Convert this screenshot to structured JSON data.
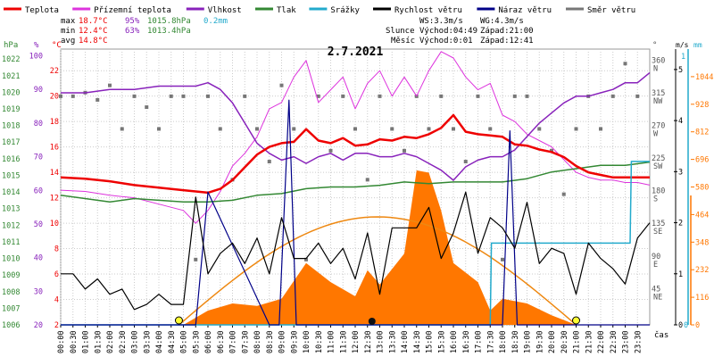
{
  "legend": [
    {
      "label": "Teplota",
      "color": "#ee0000"
    },
    {
      "label": "Přízemní teplota",
      "color": "#dd33dd"
    },
    {
      "label": "Vlhkost",
      "color": "#8822bb"
    },
    {
      "label": "Tlak",
      "color": "#338833"
    },
    {
      "label": "Srážky",
      "color": "#22aacc"
    },
    {
      "label": "Rychlost větru",
      "color": "#000000"
    },
    {
      "label": "Náraz větru",
      "color": "#000088"
    },
    {
      "label": "Směr větru",
      "color": "#777777"
    }
  ],
  "stats": {
    "max_label": "max",
    "max_temp": "18.7°C",
    "max_hum": "95%",
    "max_press": "1015.8hPa",
    "max_rain": "0.2mm",
    "min_label": "min",
    "min_temp": "12.4°C",
    "min_hum": "63%",
    "min_press": "1013.4hPa",
    "avg_label": "avg",
    "avg_temp": "14.8°C"
  },
  "wind_info": {
    "ws": "WS:3.3m/s",
    "wg": "WG:4.3m/s"
  },
  "sun": {
    "label": "Slunce",
    "rise": "Východ:04:49",
    "set": "Západ:21:00"
  },
  "moon": {
    "label": "Měsíc",
    "rise": "Východ:0:01",
    "set": "Západ:12:41"
  },
  "colors": {
    "temp": "#ee0000",
    "ground": "#dd33dd",
    "hum": "#8822bb",
    "press": "#338833",
    "rain": "#22aacc",
    "wind": "#000000",
    "gust": "#000088",
    "dir": "#777777",
    "solar": "#ff7700",
    "sun_curve": "#ee8811"
  },
  "chart_data": {
    "type": "line",
    "title": "2.7.2021",
    "x_ticks": [
      "00:00",
      "00:30",
      "01:00",
      "01:30",
      "02:00",
      "02:30",
      "03:00",
      "03:30",
      "04:00",
      "04:30",
      "05:00",
      "05:30",
      "06:00",
      "06:30",
      "07:00",
      "07:30",
      "08:00",
      "08:30",
      "09:00",
      "09:30",
      "10:00",
      "10:30",
      "11:00",
      "11:30",
      "12:00",
      "12:30",
      "13:00",
      "13:30",
      "14:00",
      "14:30",
      "15:00",
      "15:30",
      "16:00",
      "16:30",
      "17:00",
      "17:30",
      "18:00",
      "18:30",
      "19:00",
      "19:30",
      "20:00",
      "20:30",
      "21:00",
      "21:30",
      "22:00",
      "22:30",
      "23:00",
      "23:30"
    ],
    "x_unit": "čas",
    "axes": {
      "hpa": {
        "label": "hPa",
        "ticks": [
          1006,
          1007,
          1008,
          1009,
          1010,
          1011,
          1012,
          1013,
          1014,
          1015,
          1016,
          1017,
          1018,
          1019,
          1020,
          1021,
          1022
        ]
      },
      "pct": {
        "label": "%",
        "ticks": [
          20,
          30,
          40,
          50,
          60,
          70,
          80,
          90,
          100
        ]
      },
      "temp": {
        "label": "°C",
        "ticks": [
          2,
          4,
          6,
          8,
          10,
          12,
          14,
          16,
          18,
          20,
          22
        ]
      },
      "deg": {
        "label": "°",
        "ticks": [
          {
            "v": "360",
            "d": "N"
          },
          {
            "v": "315",
            "d": "NW"
          },
          {
            "v": "270",
            "d": "W"
          },
          {
            "v": "225",
            "d": "SW"
          },
          {
            "v": "180",
            "d": "S"
          },
          {
            "v": "135",
            "d": "SE"
          },
          {
            "v": "90",
            "d": "E"
          },
          {
            "v": "45",
            "d": "NE"
          }
        ]
      },
      "ms": {
        "label": "m/s",
        "ticks": [
          0,
          1,
          2,
          3,
          4,
          5
        ]
      },
      "mm": {
        "label": "mm",
        "ticks": [
          0,
          1
        ]
      },
      "solar": {
        "ticks": [
          0,
          116,
          232,
          348,
          464,
          580,
          696,
          812,
          928,
          1044
        ]
      }
    },
    "series": [
      {
        "name": "Teplota",
        "x": [
          0,
          1,
          2,
          3,
          4,
          5,
          5.5,
          6,
          6.5,
          7,
          7.5,
          8,
          8.5,
          9,
          9.5,
          10,
          10.5,
          11,
          11.5,
          12,
          12.5,
          13,
          13.5,
          14,
          14.5,
          15,
          15.5,
          16,
          16.5,
          17,
          17.5,
          18,
          18.5,
          19,
          19.5,
          20,
          20.5,
          21,
          21.5,
          22,
          22.5,
          23,
          23.5,
          24
        ],
        "values": [
          13.6,
          13.5,
          13.3,
          13.0,
          12.8,
          12.6,
          12.5,
          12.4,
          12.7,
          13.4,
          14.4,
          15.4,
          16.0,
          16.3,
          16.4,
          17.4,
          16.5,
          16.3,
          16.7,
          16.1,
          16.2,
          16.6,
          16.5,
          16.8,
          16.7,
          17.0,
          17.5,
          18.5,
          17.2,
          17.0,
          16.9,
          16.8,
          16.2,
          16.1,
          15.8,
          15.6,
          15.2,
          14.5,
          14.0,
          13.8,
          13.6,
          13.6,
          13.6,
          13.6
        ]
      },
      {
        "name": "Přízemní teplota",
        "x": [
          0,
          1,
          2,
          3,
          4,
          5,
          5.5,
          6,
          6.5,
          7,
          7.5,
          8,
          8.5,
          9,
          9.5,
          10,
          10.5,
          11,
          11.5,
          12,
          12.5,
          13,
          13.5,
          14,
          14.5,
          15,
          15.5,
          16,
          16.5,
          17,
          17.5,
          18,
          18.5,
          19,
          19.5,
          20,
          20.5,
          21,
          21.5,
          22,
          22.5,
          23,
          23.5,
          24
        ],
        "values": [
          12.6,
          12.5,
          12.2,
          12.0,
          11.5,
          11.0,
          10.0,
          11.0,
          12.5,
          14.5,
          15.5,
          16.8,
          19.0,
          19.5,
          21.5,
          22.8,
          19.5,
          20.5,
          21.5,
          19.0,
          21.0,
          22.0,
          20.0,
          21.5,
          20.0,
          22.0,
          23.5,
          23.0,
          21.5,
          20.5,
          21.0,
          18.5,
          18.0,
          17.0,
          16.5,
          16.0,
          15.0,
          14.0,
          13.6,
          13.4,
          13.4,
          13.2,
          13.2,
          13.0
        ]
      },
      {
        "name": "Vlhkost",
        "x": [
          0,
          1,
          2,
          3,
          4,
          5,
          5.5,
          6,
          6.5,
          7,
          7.5,
          8,
          8.5,
          9,
          9.5,
          10,
          10.5,
          11,
          11.5,
          12,
          12.5,
          13,
          13.5,
          14,
          14.5,
          15,
          15.5,
          16,
          16.5,
          17,
          17.5,
          18,
          18.5,
          19,
          19.5,
          20,
          20.5,
          21,
          21.5,
          22,
          22.5,
          23,
          23.5,
          24
        ],
        "values": [
          89,
          89,
          90,
          90,
          91,
          91,
          91,
          92,
          90,
          86,
          80,
          74,
          71,
          69,
          70,
          68,
          70,
          71,
          69,
          71,
          71,
          70,
          70,
          71,
          70,
          68,
          66,
          63,
          67,
          69,
          70,
          70,
          72,
          76,
          80,
          83,
          86,
          88,
          88,
          89,
          90,
          92,
          92,
          95
        ]
      },
      {
        "name": "Tlak",
        "x": [
          0,
          1,
          2,
          3,
          4,
          5,
          6,
          7,
          8,
          9,
          10,
          11,
          12,
          13,
          14,
          15,
          16,
          17,
          18,
          19,
          20,
          21,
          22,
          23,
          24
        ],
        "values": [
          1013.8,
          1013.6,
          1013.4,
          1013.6,
          1013.5,
          1013.4,
          1013.4,
          1013.5,
          1013.8,
          1013.9,
          1014.2,
          1014.3,
          1014.3,
          1014.4,
          1014.6,
          1014.5,
          1014.6,
          1014.6,
          1014.6,
          1014.8,
          1015.2,
          1015.4,
          1015.6,
          1015.6,
          1015.8
        ]
      },
      {
        "name": "Rychlost větru",
        "x": [
          0,
          0.5,
          1,
          1.5,
          2,
          2.5,
          3,
          3.5,
          4,
          4.5,
          5,
          5.5,
          6,
          6.5,
          7,
          7.5,
          8,
          8.5,
          9,
          9.5,
          10,
          10.5,
          11,
          11.5,
          12,
          12.5,
          13,
          13.5,
          14,
          14.5,
          15,
          15.5,
          16,
          16.5,
          17,
          17.5,
          18,
          18.5,
          19,
          19.5,
          20,
          20.5,
          21,
          21.5,
          22,
          22.5,
          23,
          23.5,
          24
        ],
        "values": [
          1.0,
          1.0,
          0.7,
          0.9,
          0.6,
          0.7,
          0.3,
          0.4,
          0.6,
          0.4,
          0.4,
          2.5,
          1.0,
          1.4,
          1.6,
          1.2,
          1.7,
          1.0,
          2.1,
          1.3,
          1.3,
          1.6,
          1.2,
          1.5,
          0.9,
          1.8,
          0.6,
          1.9,
          1.9,
          1.9,
          2.3,
          1.3,
          1.8,
          2.6,
          1.4,
          2.1,
          1.9,
          1.5,
          2.4,
          1.2,
          1.5,
          1.4,
          0.6,
          1.6,
          1.3,
          1.1,
          0.8,
          1.7,
          2.0
        ]
      },
      {
        "name": "Náraz větru",
        "x": [
          0,
          3,
          5.5,
          6,
          8.5,
          8.9,
          9.3,
          9.6,
          12,
          17.5,
          18,
          18.3,
          18.6,
          19,
          24
        ],
        "values": [
          0,
          0,
          0,
          2.6,
          0,
          0,
          4.4,
          0,
          0,
          0,
          0,
          3.8,
          0,
          0,
          0
        ]
      },
      {
        "name": "Srážky",
        "x": [
          0,
          17.5,
          17.55,
          21.5,
          23.2,
          23.25,
          24
        ],
        "values": [
          0,
          0,
          0.1,
          0.1,
          0.1,
          0.2,
          0.2
        ]
      },
      {
        "name": "Směr větru",
        "x": [
          0,
          0.5,
          1,
          1.5,
          2,
          2.5,
          3,
          3.5,
          4,
          4.5,
          5,
          5.5,
          6,
          6.5,
          7,
          7.5,
          8,
          8.5,
          9,
          9.5,
          10,
          10.5,
          11,
          11.5,
          12,
          12.5,
          13,
          13.5,
          14,
          14.5,
          15,
          15.5,
          16,
          16.5,
          17,
          17.5,
          18,
          18.5,
          19,
          19.5,
          20,
          20.5,
          21,
          21.5,
          22,
          22.5,
          23,
          23.5
        ],
        "values": [
          315,
          315,
          320,
          310,
          330,
          270,
          315,
          300,
          270,
          315,
          315,
          90,
          315,
          270,
          200,
          315,
          270,
          225,
          330,
          270,
          90,
          315,
          240,
          315,
          270,
          200,
          315,
          270,
          240,
          315,
          270,
          315,
          270,
          225,
          315,
          270,
          90,
          315,
          315,
          270,
          240,
          180,
          270,
          315,
          270,
          315,
          360,
          315
        ]
      }
    ],
    "solar": {
      "x": [
        5,
        6,
        7,
        8,
        9,
        10,
        11,
        12,
        12.5,
        13,
        14,
        14.5,
        15,
        15.5,
        16,
        17,
        17.5,
        18,
        19,
        20,
        21
      ],
      "values": [
        0,
        60,
        90,
        80,
        110,
        260,
        180,
        120,
        230,
        170,
        300,
        650,
        640,
        480,
        260,
        180,
        60,
        110,
        90,
        40,
        0
      ]
    },
    "ylim": {
      "hpa": [
        1006,
        1022.6
      ],
      "pct": [
        20,
        102
      ],
      "temp": [
        2,
        23.7
      ],
      "deg": [
        0,
        380
      ],
      "ms": [
        0,
        5.4
      ],
      "solar": [
        0,
        1160
      ]
    }
  }
}
